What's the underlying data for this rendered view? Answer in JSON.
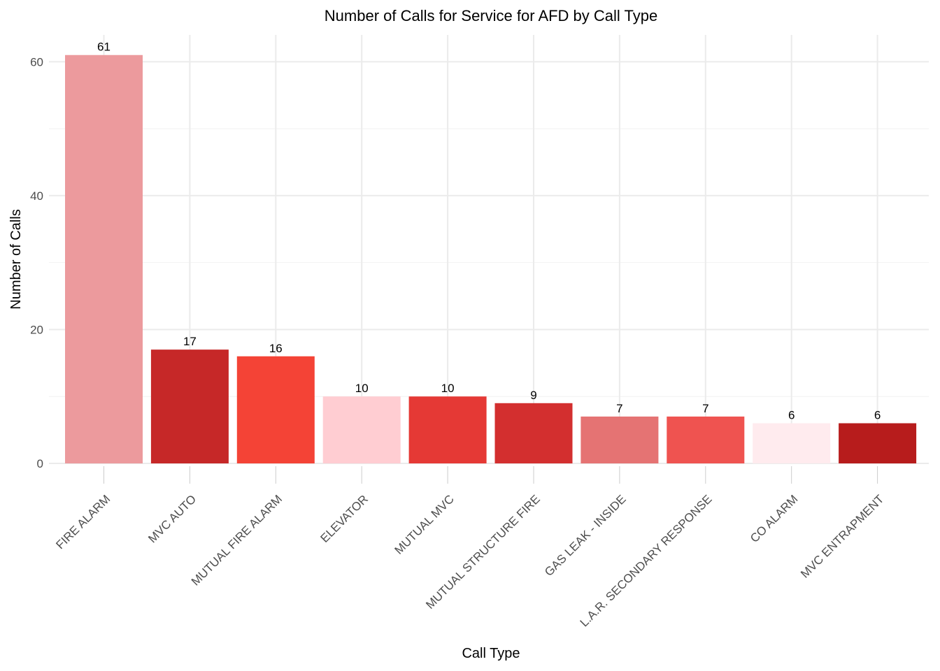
{
  "chart_data": {
    "type": "bar",
    "title": "Number of Calls for Service for AFD by Call Type",
    "xlabel": "Call Type",
    "ylabel": "Number of Calls",
    "categories": [
      "FIRE ALARM",
      "MVC AUTO",
      "MUTUAL FIRE ALARM",
      "ELEVATOR",
      "MUTUAL MVC",
      "MUTUAL STRUCTURE FIRE",
      "GAS LEAK - INSIDE",
      "L.A.R. SECONDARY RESPONSE",
      "CO ALARM",
      "MVC ENTRAPMENT"
    ],
    "values": [
      61,
      17,
      16,
      10,
      10,
      9,
      7,
      7,
      6,
      6
    ],
    "colors": [
      "#ec9a9d",
      "#c62828",
      "#f44336",
      "#ffcdd2",
      "#e53935",
      "#d32f2f",
      "#e57373",
      "#ef5350",
      "#ffebee",
      "#b71c1c"
    ],
    "ylim": [
      0,
      64
    ],
    "yticks": [
      0,
      20,
      40,
      60
    ],
    "grid": true,
    "legend": "none"
  }
}
